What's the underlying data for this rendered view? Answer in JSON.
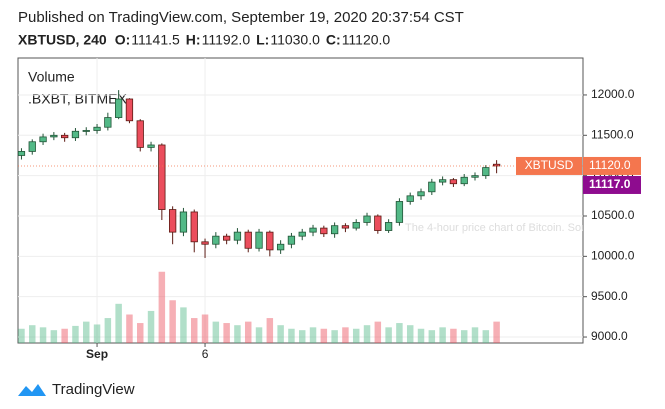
{
  "header": {
    "published": "Published on TradingView.com, September 19, 2020 20:37:54 CST",
    "symbol": "XBTUSD, 240",
    "ohlc": [
      {
        "label": "O:",
        "value": "11141.5"
      },
      {
        "label": "H:",
        "value": "11192.0"
      },
      {
        "label": "L:",
        "value": "11030.0"
      },
      {
        "label": "C:",
        "value": "11120.0"
      }
    ]
  },
  "chart_data": {
    "type": "candlestick",
    "legend": [
      "Volume",
      ".BXBT, BITMEX"
    ],
    "watermark": "The 4-hour price chart of Bitcoin. Source: Tra",
    "x": [
      -2.5,
      -2,
      -1.5,
      -1,
      -0.5,
      0,
      0.5,
      1,
      1.5,
      2,
      2.5,
      3,
      3.5,
      4,
      4.5,
      5,
      5.5,
      6,
      6.5,
      7,
      7.5,
      8,
      8.5,
      9,
      9.5,
      10,
      10.5,
      11,
      11.5,
      12,
      12.5,
      13,
      13.5,
      14,
      14.5,
      15,
      15.5,
      16,
      16.5,
      17,
      17.5,
      18,
      18.5,
      19,
      19.5
    ],
    "open": [
      11250,
      11300,
      11420,
      11480,
      11500,
      11470,
      11550,
      11560,
      11600,
      11720,
      11950,
      11680,
      11350,
      11380,
      10580,
      10300,
      10550,
      10180,
      10150,
      10250,
      10200,
      10300,
      10100,
      10300,
      10080,
      10150,
      10250,
      10300,
      10350,
      10280,
      10380,
      10350,
      10420,
      10500,
      10320,
      10420,
      10680,
      10750,
      10800,
      10920,
      10950,
      10900,
      10980,
      11000,
      11141.5
    ],
    "high": [
      11340,
      11450,
      11520,
      11540,
      11530,
      11590,
      11600,
      11640,
      11780,
      12060,
      11960,
      11700,
      11420,
      11400,
      10620,
      10600,
      10580,
      10220,
      10300,
      10280,
      10350,
      10330,
      10340,
      10320,
      10200,
      10290,
      10340,
      10390,
      10380,
      10420,
      10410,
      10460,
      10540,
      10520,
      10460,
      10720,
      10790,
      10840,
      10960,
      10990,
      10970,
      11020,
      11040,
      11130,
      11192
    ],
    "low": [
      11200,
      11260,
      11380,
      11440,
      11420,
      11430,
      11500,
      11520,
      11560,
      11700,
      11650,
      11300,
      11300,
      10450,
      10150,
      10250,
      10050,
      9980,
      10100,
      10150,
      10150,
      10050,
      10060,
      10000,
      10030,
      10100,
      10200,
      10250,
      10240,
      10230,
      10300,
      10320,
      10380,
      10280,
      10290,
      10380,
      10640,
      10700,
      10760,
      10880,
      10860,
      10870,
      10940,
      10960,
      11030
    ],
    "close": [
      11300,
      11420,
      11480,
      11500,
      11470,
      11550,
      11560,
      11600,
      11720,
      11950,
      11680,
      11350,
      11380,
      10580,
      10300,
      10550,
      10180,
      10150,
      10250,
      10200,
      10300,
      10100,
      10300,
      10080,
      10150,
      10250,
      10300,
      10350,
      10280,
      10380,
      10350,
      10420,
      10500,
      10320,
      10420,
      10680,
      10750,
      10800,
      10920,
      10950,
      10900,
      10980,
      11000,
      11100,
      11120
    ],
    "volume": [
      20,
      25,
      22,
      18,
      20,
      24,
      30,
      26,
      35,
      55,
      40,
      28,
      45,
      100,
      60,
      50,
      35,
      40,
      30,
      28,
      25,
      30,
      22,
      35,
      25,
      20,
      18,
      22,
      20,
      18,
      22,
      20,
      25,
      30,
      22,
      28,
      25,
      20,
      18,
      22,
      20,
      18,
      22,
      18,
      30
    ],
    "up_color": "#53b987",
    "down_color": "#eb4d5c",
    "up_border": "#225437",
    "down_border": "#5b1a13",
    "xlim": [
      -2.66,
      23.5
    ],
    "xticks": [
      {
        "value": 1,
        "label": "Sep"
      },
      6
    ],
    "ylim": [
      8926,
      12458
    ],
    "yticks": [
      {
        "value": 9000,
        "label": "9000.0"
      },
      {
        "value": 9500,
        "label": "9500.0"
      },
      {
        "value": 10000,
        "label": "10000.0"
      },
      {
        "value": 10500,
        "label": "10500.0"
      },
      {
        "value": 11000,
        "label": "11000.0"
      },
      {
        "value": 11500,
        "label": "11500.0"
      },
      {
        "value": 12000,
        "label": "12000.0"
      }
    ],
    "y2lim": [
      0,
      400
    ],
    "grid": true,
    "price_markers": [
      {
        "name": "XBTUSD",
        "value": 11120,
        "label": "11120.0",
        "color": "#f4764e"
      },
      {
        "value": 11117,
        "label": "11117.0",
        "color": "#8e0c8f"
      }
    ]
  },
  "footer": {
    "brand": "TradingView"
  }
}
